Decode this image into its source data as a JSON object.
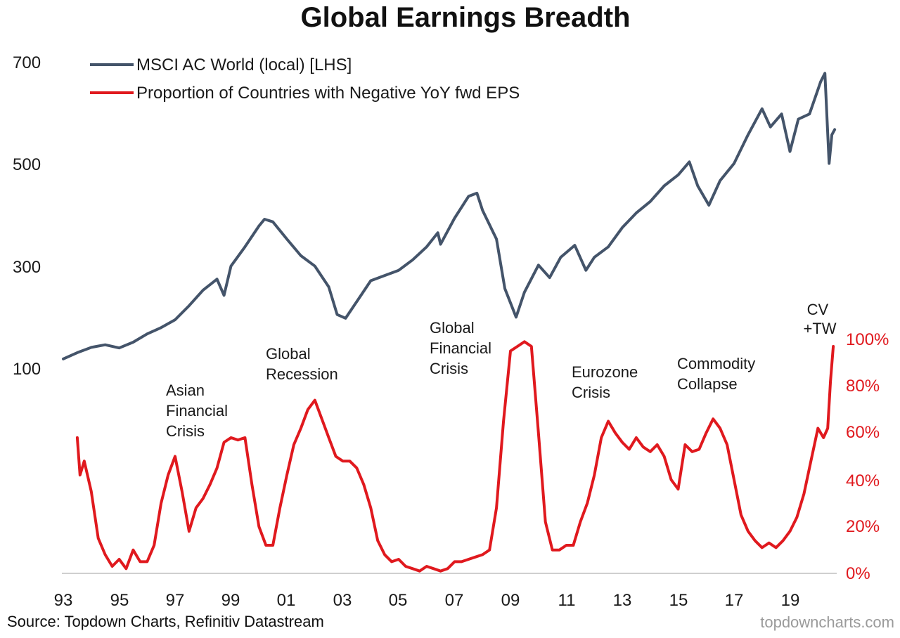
{
  "chart_data": {
    "type": "line",
    "title": "Global Earnings Breadth",
    "x_ticks": [
      "93",
      "95",
      "97",
      "99",
      "01",
      "03",
      "05",
      "07",
      "09",
      "11",
      "13",
      "15",
      "17",
      "19"
    ],
    "left_axis": {
      "ticks": [
        "700",
        "500",
        "300",
        "100"
      ],
      "ylim": [
        100,
        700
      ]
    },
    "right_axis": {
      "ticks": [
        "100%",
        "80%",
        "60%",
        "40%",
        "20%",
        "0%"
      ],
      "ylim": [
        0,
        100
      ],
      "color": "#e0191e"
    },
    "legend_position": "top-left",
    "grid": false,
    "series": [
      {
        "name": "MSCI AC World (local) [LHS]",
        "axis": "left",
        "color": "#44546a",
        "points": [
          [
            1993.0,
            130
          ],
          [
            1993.5,
            142
          ],
          [
            1994.0,
            152
          ],
          [
            1994.5,
            157
          ],
          [
            1995.0,
            151
          ],
          [
            1995.5,
            162
          ],
          [
            1996.0,
            178
          ],
          [
            1996.5,
            190
          ],
          [
            1997.0,
            205
          ],
          [
            1997.5,
            232
          ],
          [
            1998.0,
            262
          ],
          [
            1998.5,
            283
          ],
          [
            1998.75,
            252
          ],
          [
            1999.0,
            308
          ],
          [
            1999.5,
            345
          ],
          [
            2000.0,
            385
          ],
          [
            2000.2,
            398
          ],
          [
            2000.5,
            393
          ],
          [
            2001.0,
            360
          ],
          [
            2001.5,
            328
          ],
          [
            2002.0,
            308
          ],
          [
            2002.5,
            268
          ],
          [
            2002.8,
            215
          ],
          [
            2003.1,
            208
          ],
          [
            2003.5,
            240
          ],
          [
            2004.0,
            280
          ],
          [
            2004.5,
            290
          ],
          [
            2005.0,
            300
          ],
          [
            2005.5,
            320
          ],
          [
            2006.0,
            345
          ],
          [
            2006.4,
            372
          ],
          [
            2006.5,
            350
          ],
          [
            2007.0,
            400
          ],
          [
            2007.5,
            442
          ],
          [
            2007.8,
            448
          ],
          [
            2008.0,
            415
          ],
          [
            2008.5,
            360
          ],
          [
            2008.8,
            265
          ],
          [
            2009.2,
            210
          ],
          [
            2009.5,
            258
          ],
          [
            2010.0,
            310
          ],
          [
            2010.4,
            286
          ],
          [
            2010.8,
            325
          ],
          [
            2011.3,
            348
          ],
          [
            2011.7,
            300
          ],
          [
            2012.0,
            325
          ],
          [
            2012.5,
            345
          ],
          [
            2013.0,
            382
          ],
          [
            2013.5,
            410
          ],
          [
            2014.0,
            432
          ],
          [
            2014.5,
            462
          ],
          [
            2015.0,
            483
          ],
          [
            2015.4,
            508
          ],
          [
            2015.7,
            462
          ],
          [
            2016.1,
            425
          ],
          [
            2016.5,
            472
          ],
          [
            2017.0,
            505
          ],
          [
            2017.5,
            560
          ],
          [
            2018.0,
            610
          ],
          [
            2018.3,
            575
          ],
          [
            2018.7,
            600
          ],
          [
            2019.0,
            528
          ],
          [
            2019.3,
            590
          ],
          [
            2019.7,
            600
          ],
          [
            2020.1,
            662
          ],
          [
            2020.25,
            678
          ],
          [
            2020.4,
            505
          ],
          [
            2020.5,
            560
          ],
          [
            2020.6,
            570
          ]
        ]
      },
      {
        "name": "Proportion of Countries with Negative YoY fwd EPS",
        "axis": "right",
        "color": "#e0191e",
        "points": [
          [
            1993.5,
            58
          ],
          [
            1993.6,
            42
          ],
          [
            1993.75,
            48
          ],
          [
            1994.0,
            35
          ],
          [
            1994.25,
            15
          ],
          [
            1994.5,
            8
          ],
          [
            1994.75,
            3
          ],
          [
            1995.0,
            6
          ],
          [
            1995.25,
            2
          ],
          [
            1995.5,
            10
          ],
          [
            1995.75,
            5
          ],
          [
            1996.0,
            5
          ],
          [
            1996.25,
            12
          ],
          [
            1996.5,
            30
          ],
          [
            1996.75,
            42
          ],
          [
            1997.0,
            50
          ],
          [
            1997.25,
            35
          ],
          [
            1997.5,
            18
          ],
          [
            1997.75,
            28
          ],
          [
            1998.0,
            32
          ],
          [
            1998.25,
            38
          ],
          [
            1998.5,
            45
          ],
          [
            1998.75,
            56
          ],
          [
            1999.0,
            58
          ],
          [
            1999.25,
            57
          ],
          [
            1999.5,
            58
          ],
          [
            1999.75,
            38
          ],
          [
            2000.0,
            20
          ],
          [
            2000.25,
            12
          ],
          [
            2000.5,
            12
          ],
          [
            2000.75,
            28
          ],
          [
            2001.0,
            42
          ],
          [
            2001.25,
            55
          ],
          [
            2001.5,
            62
          ],
          [
            2001.75,
            70
          ],
          [
            2002.0,
            74
          ],
          [
            2002.25,
            66
          ],
          [
            2002.5,
            58
          ],
          [
            2002.75,
            50
          ],
          [
            2003.0,
            48
          ],
          [
            2003.25,
            48
          ],
          [
            2003.5,
            45
          ],
          [
            2003.75,
            38
          ],
          [
            2004.0,
            28
          ],
          [
            2004.25,
            14
          ],
          [
            2004.5,
            8
          ],
          [
            2004.75,
            5
          ],
          [
            2005.0,
            6
          ],
          [
            2005.25,
            3
          ],
          [
            2005.5,
            2
          ],
          [
            2005.75,
            1
          ],
          [
            2006.0,
            3
          ],
          [
            2006.25,
            2
          ],
          [
            2006.5,
            1
          ],
          [
            2006.75,
            2
          ],
          [
            2007.0,
            5
          ],
          [
            2007.25,
            5
          ],
          [
            2007.5,
            6
          ],
          [
            2007.75,
            7
          ],
          [
            2008.0,
            8
          ],
          [
            2008.25,
            10
          ],
          [
            2008.5,
            28
          ],
          [
            2008.75,
            65
          ],
          [
            2009.0,
            95
          ],
          [
            2009.25,
            97
          ],
          [
            2009.5,
            99
          ],
          [
            2009.75,
            97
          ],
          [
            2010.0,
            60
          ],
          [
            2010.25,
            22
          ],
          [
            2010.5,
            10
          ],
          [
            2010.75,
            10
          ],
          [
            2011.0,
            12
          ],
          [
            2011.25,
            12
          ],
          [
            2011.5,
            22
          ],
          [
            2011.75,
            30
          ],
          [
            2012.0,
            42
          ],
          [
            2012.25,
            58
          ],
          [
            2012.5,
            65
          ],
          [
            2012.75,
            60
          ],
          [
            2013.0,
            56
          ],
          [
            2013.25,
            53
          ],
          [
            2013.5,
            58
          ],
          [
            2013.75,
            54
          ],
          [
            2014.0,
            52
          ],
          [
            2014.25,
            55
          ],
          [
            2014.5,
            50
          ],
          [
            2014.75,
            40
          ],
          [
            2015.0,
            36
          ],
          [
            2015.25,
            55
          ],
          [
            2015.5,
            52
          ],
          [
            2015.75,
            53
          ],
          [
            2016.0,
            60
          ],
          [
            2016.25,
            66
          ],
          [
            2016.5,
            62
          ],
          [
            2016.75,
            55
          ],
          [
            2017.0,
            40
          ],
          [
            2017.25,
            25
          ],
          [
            2017.5,
            18
          ],
          [
            2017.75,
            14
          ],
          [
            2018.0,
            11
          ],
          [
            2018.25,
            13
          ],
          [
            2018.5,
            11
          ],
          [
            2018.75,
            14
          ],
          [
            2019.0,
            18
          ],
          [
            2019.25,
            24
          ],
          [
            2019.5,
            34
          ],
          [
            2019.75,
            48
          ],
          [
            2020.0,
            62
          ],
          [
            2020.2,
            58
          ],
          [
            2020.35,
            62
          ],
          [
            2020.45,
            82
          ],
          [
            2020.55,
            97
          ]
        ]
      }
    ],
    "annotations": [
      {
        "lines": [
          "Asian",
          "Financial",
          "Crisis"
        ]
      },
      {
        "lines": [
          "Global",
          "Recession"
        ]
      },
      {
        "lines": [
          "Global",
          "Financial",
          "Crisis"
        ]
      },
      {
        "lines": [
          "Eurozone",
          "Crisis"
        ]
      },
      {
        "lines": [
          "Commodity",
          "Collapse"
        ]
      },
      {
        "lines": [
          "CV",
          "+TW"
        ]
      }
    ]
  },
  "footer": {
    "source": "Source: Topdown Charts, Refinitiv Datastream",
    "watermark": "topdowncharts.com"
  }
}
